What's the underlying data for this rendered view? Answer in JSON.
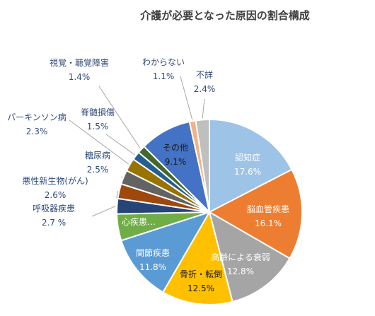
{
  "chart_data": {
    "type": "pie",
    "title": "介護が必要となった原因の割合構成",
    "unit": "%",
    "slices": [
      {
        "label": "認知症",
        "value_text": "17.6%",
        "value": 17.6,
        "color": "#9dc3e6",
        "label_color": "#ffffff",
        "label_side": "inside"
      },
      {
        "label": "脳血管疾患",
        "value_text": "16.1%",
        "value": 16.1,
        "color": "#ed7d31",
        "label_color": "#ffffff",
        "label_side": "inside"
      },
      {
        "label": "高齢による衰弱",
        "value_text": "12.8%",
        "value": 12.8,
        "color": "#a5a5a5",
        "label_color": "#ffffff",
        "label_side": "inside"
      },
      {
        "label": "骨折・転倒",
        "value_text": "12.5%",
        "value": 12.5,
        "color": "#ffc000",
        "label_color": "#1a1a1a",
        "label_side": "inside"
      },
      {
        "label": "関節疾患",
        "value_text": "11.8%",
        "value": 11.8,
        "color": "#5b9bd5",
        "label_color": "#ffffff",
        "label_side": "inside"
      },
      {
        "label": "心疾患…",
        "value_text": "",
        "value": 4.7,
        "color": "#70ad47",
        "label_color": "#ffffff",
        "label_side": "inside"
      },
      {
        "label": "呼吸器疾患",
        "value_text": "2.7 %",
        "value": 2.7,
        "color": "#264478",
        "label_color": "#2f4a7a",
        "label_side": "outside"
      },
      {
        "label": "悪性新生物(がん)",
        "value_text": "2.6%",
        "value": 2.6,
        "color": "#9e480e",
        "label_color": "#2f4a7a",
        "label_side": "outside"
      },
      {
        "label": "糖尿病",
        "value_text": "2.5%",
        "value": 2.5,
        "color": "#636363",
        "label_color": "#2f4a7a",
        "label_side": "outside"
      },
      {
        "label": "パーキンソン病",
        "value_text": "2.3%",
        "value": 2.3,
        "color": "#997300",
        "label_color": "#2f4a7a",
        "label_side": "outside"
      },
      {
        "label": "脊髄損傷",
        "value_text": "1.5%",
        "value": 1.5,
        "color": "#255e91",
        "label_color": "#2f4a7a",
        "label_side": "outside"
      },
      {
        "label": "視覚・聴覚障害",
        "value_text": "1.4%",
        "value": 1.4,
        "color": "#43682b",
        "label_color": "#2f4a7a",
        "label_side": "outside"
      },
      {
        "label": "その他",
        "value_text": "9.1%",
        "value": 9.1,
        "color": "#4472c4",
        "label_color": "#1a1a1a",
        "label_side": "inside"
      },
      {
        "label": "わからない",
        "value_text": "1.1%",
        "value": 1.1,
        "color": "#f4b183",
        "label_color": "#2f4a7a",
        "label_side": "outside"
      },
      {
        "label": "不詳",
        "value_text": "2.4%",
        "value": 2.4,
        "color": "#bfbfbf",
        "label_color": "#2f4a7a",
        "label_side": "outside"
      }
    ]
  }
}
